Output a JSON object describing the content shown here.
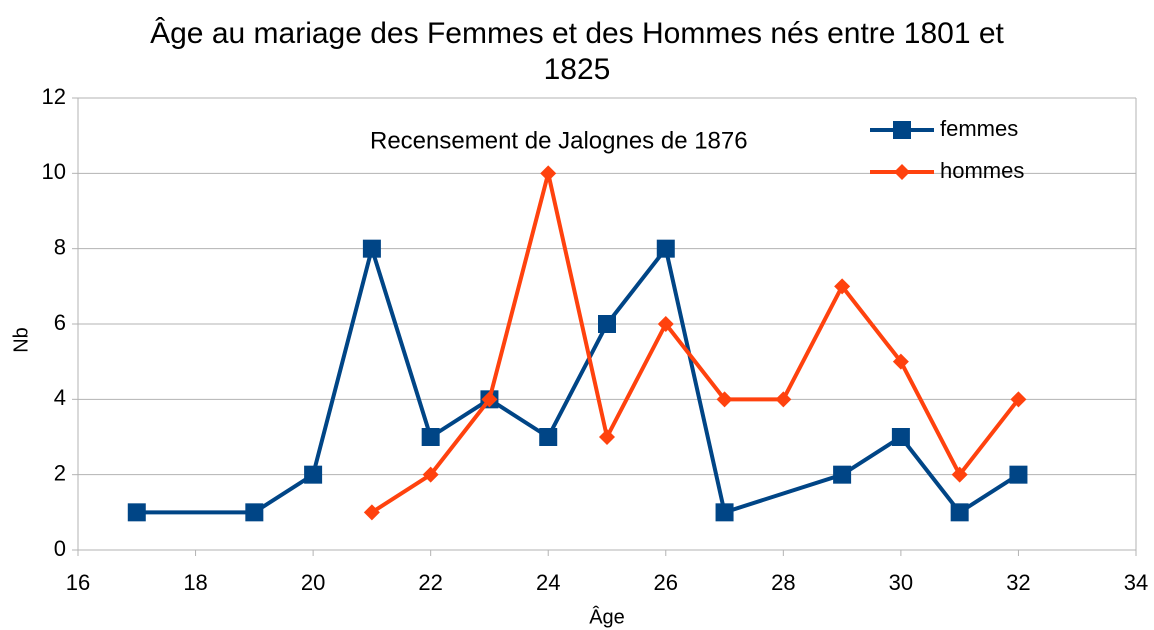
{
  "chart_data": {
    "type": "line",
    "title": "Âge au mariage des Femmes et des Hommes nés entre 1801 et 1825",
    "annotation": "Recensement de Jalognes de 1876",
    "x_label": "Âge",
    "y_label": "Nb",
    "xlim": [
      16,
      34
    ],
    "xticks": [
      16,
      18,
      20,
      22,
      24,
      26,
      28,
      30,
      32,
      34
    ],
    "ylim": [
      0,
      12
    ],
    "yticks": [
      0,
      2,
      4,
      6,
      8,
      10,
      12
    ],
    "grid": true,
    "legend": "top-right",
    "series": [
      {
        "name": "femmes",
        "color": "#004586",
        "marker": "square",
        "x": [
          17,
          19,
          20,
          21,
          22,
          23,
          24,
          25,
          26,
          27,
          29,
          30,
          31,
          32
        ],
        "values": [
          1,
          1,
          2,
          8,
          3,
          4,
          3,
          6,
          8,
          1,
          2,
          3,
          1,
          2
        ]
      },
      {
        "name": "hommes",
        "color": "#ff420e",
        "marker": "diamond",
        "x": [
          21,
          22,
          23,
          24,
          25,
          26,
          27,
          28,
          29,
          30,
          31,
          32
        ],
        "values": [
          1,
          2,
          4,
          10,
          3,
          6,
          4,
          4,
          7,
          5,
          2,
          4
        ]
      }
    ]
  }
}
